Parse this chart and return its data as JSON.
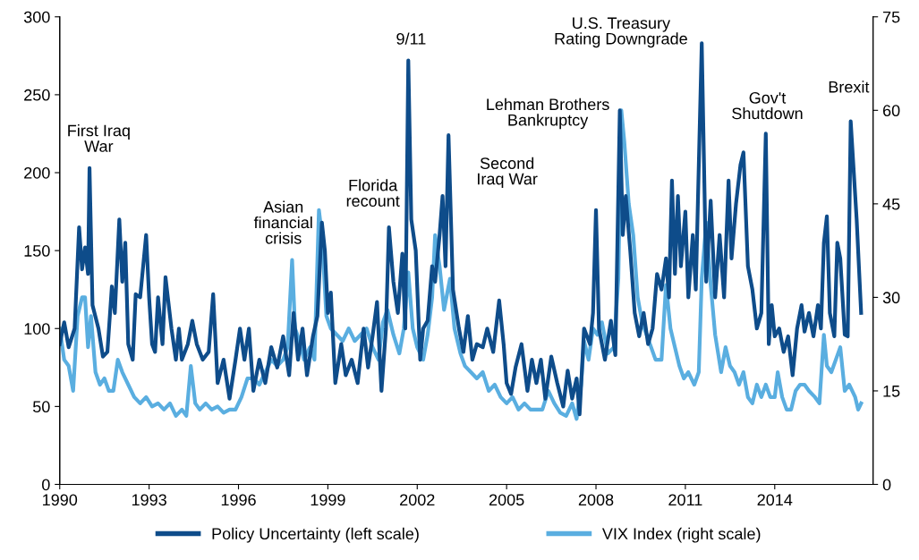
{
  "chart_data": {
    "type": "line",
    "xlim": [
      1990,
      2017.3
    ],
    "xticks": [
      1990,
      1993,
      1996,
      1999,
      2002,
      2005,
      2008,
      2011,
      2014
    ],
    "ylim": [
      0,
      300
    ],
    "yticks": [
      0,
      50,
      100,
      150,
      200,
      250,
      300
    ],
    "y2lim": [
      0,
      75
    ],
    "y2ticks": [
      0,
      15,
      30,
      45,
      60,
      75
    ],
    "grid": false,
    "legend": "bottom",
    "marker": "none",
    "line_style": "solid",
    "series": [
      {
        "name": "Policy Uncertainty (left scale)",
        "color": "#0e4c8a",
        "x": [
          1990.0,
          1990.15,
          1990.3,
          1990.5,
          1990.65,
          1990.75,
          1990.85,
          1990.95,
          1991.0,
          1991.1,
          1991.3,
          1991.45,
          1991.6,
          1991.75,
          1991.85,
          1992.0,
          1992.1,
          1992.2,
          1992.3,
          1992.45,
          1992.55,
          1992.7,
          1992.9,
          1993.0,
          1993.1,
          1993.2,
          1993.3,
          1993.45,
          1993.55,
          1993.75,
          1993.9,
          1994.0,
          1994.1,
          1994.3,
          1994.45,
          1994.6,
          1994.8,
          1995.0,
          1995.15,
          1995.3,
          1995.5,
          1995.7,
          1995.9,
          1996.05,
          1996.2,
          1996.35,
          1996.5,
          1996.7,
          1996.9,
          1997.1,
          1997.3,
          1997.5,
          1997.7,
          1997.85,
          1998.0,
          1998.15,
          1998.3,
          1998.5,
          1998.65,
          1998.8,
          1998.9,
          1999.0,
          1999.1,
          1999.25,
          1999.45,
          1999.6,
          1999.8,
          2000.0,
          2000.2,
          2000.35,
          2000.5,
          2000.65,
          2000.8,
          2000.95,
          2001.05,
          2001.2,
          2001.35,
          2001.5,
          2001.6,
          2001.7,
          2001.8,
          2001.95,
          2002.1,
          2002.2,
          2002.35,
          2002.5,
          2002.6,
          2002.75,
          2002.85,
          2002.95,
          2003.05,
          2003.2,
          2003.4,
          2003.55,
          2003.7,
          2003.85,
          2004.0,
          2004.2,
          2004.35,
          2004.55,
          2004.75,
          2004.9,
          2005.0,
          2005.15,
          2005.3,
          2005.5,
          2005.7,
          2005.85,
          2006.0,
          2006.15,
          2006.3,
          2006.5,
          2006.7,
          2006.9,
          2007.05,
          2007.2,
          2007.35,
          2007.45,
          2007.6,
          2007.8,
          2007.9,
          2008.0,
          2008.1,
          2008.3,
          2008.5,
          2008.65,
          2008.8,
          2008.9,
          2009.0,
          2009.15,
          2009.3,
          2009.45,
          2009.6,
          2009.75,
          2009.9,
          2010.05,
          2010.2,
          2010.35,
          2010.45,
          2010.55,
          2010.65,
          2010.75,
          2010.85,
          2011.0,
          2011.1,
          2011.25,
          2011.35,
          2011.55,
          2011.7,
          2011.85,
          2012.0,
          2012.15,
          2012.3,
          2012.45,
          2012.55,
          2012.7,
          2012.85,
          2012.95,
          2013.1,
          2013.25,
          2013.4,
          2013.55,
          2013.7,
          2013.8,
          2013.9,
          2014.0,
          2014.15,
          2014.3,
          2014.45,
          2014.6,
          2014.75,
          2014.9,
          2015.0,
          2015.15,
          2015.3,
          2015.45,
          2015.55,
          2015.65,
          2015.75,
          2015.85,
          2016.0,
          2016.1,
          2016.2,
          2016.35,
          2016.45,
          2016.55,
          2016.75,
          2016.9
        ],
        "values": [
          90,
          104,
          88,
          100,
          165,
          138,
          152,
          135,
          203,
          115,
          100,
          82,
          85,
          127,
          110,
          170,
          130,
          155,
          90,
          80,
          122,
          120,
          160,
          120,
          90,
          85,
          120,
          90,
          133,
          100,
          80,
          100,
          80,
          90,
          105,
          90,
          80,
          85,
          122,
          65,
          80,
          55,
          80,
          100,
          80,
          100,
          60,
          80,
          65,
          88,
          75,
          95,
          70,
          110,
          80,
          100,
          70,
          95,
          108,
          168,
          150,
          110,
          123,
          65,
          90,
          70,
          80,
          65,
          100,
          75,
          95,
          117,
          60,
          100,
          165,
          130,
          110,
          148,
          100,
          272,
          170,
          150,
          80,
          100,
          105,
          140,
          130,
          160,
          185,
          140,
          224,
          125,
          100,
          85,
          108,
          80,
          90,
          88,
          100,
          85,
          118,
          90,
          65,
          58,
          75,
          90,
          60,
          80,
          65,
          80,
          55,
          82,
          65,
          50,
          73,
          55,
          68,
          45,
          100,
          90,
          110,
          176,
          100,
          80,
          105,
          83,
          240,
          160,
          185,
          150,
          110,
          95,
          110,
          90,
          100,
          135,
          125,
          145,
          120,
          195,
          135,
          185,
          140,
          175,
          120,
          160,
          125,
          283,
          130,
          182,
          120,
          160,
          120,
          195,
          145,
          180,
          205,
          213,
          140,
          125,
          100,
          110,
          225,
          90,
          115,
          95,
          100,
          85,
          95,
          70,
          100,
          115,
          98,
          110,
          95,
          115,
          100,
          155,
          172,
          110,
          95,
          155,
          145,
          96,
          95,
          233,
          170,
          110
        ]
      },
      {
        "name": "VIX Index (right scale)",
        "color": "#5aaee0",
        "axis": "y2",
        "x": [
          1990.0,
          1990.15,
          1990.3,
          1990.45,
          1990.6,
          1990.75,
          1990.85,
          1990.95,
          1991.05,
          1991.2,
          1991.35,
          1991.5,
          1991.65,
          1991.8,
          1991.95,
          1992.1,
          1992.3,
          1992.5,
          1992.7,
          1992.9,
          1993.1,
          1993.3,
          1993.5,
          1993.7,
          1993.9,
          1994.1,
          1994.25,
          1994.4,
          1994.55,
          1994.7,
          1994.9,
          1995.1,
          1995.3,
          1995.5,
          1995.7,
          1995.9,
          1996.1,
          1996.3,
          1996.5,
          1996.7,
          1996.9,
          1997.1,
          1997.3,
          1997.5,
          1997.65,
          1997.8,
          1997.9,
          1998.05,
          1998.2,
          1998.4,
          1998.55,
          1998.7,
          1998.8,
          1998.95,
          1999.1,
          1999.3,
          1999.5,
          1999.7,
          1999.9,
          2000.1,
          2000.3,
          2000.5,
          2000.7,
          2000.85,
          2001.0,
          2001.2,
          2001.4,
          2001.55,
          2001.7,
          2001.85,
          2002.0,
          2002.2,
          2002.35,
          2002.5,
          2002.6,
          2002.75,
          2002.9,
          2003.1,
          2003.25,
          2003.45,
          2003.6,
          2003.8,
          2004.0,
          2004.2,
          2004.4,
          2004.6,
          2004.8,
          2005.0,
          2005.2,
          2005.4,
          2005.6,
          2005.8,
          2006.0,
          2006.2,
          2006.4,
          2006.6,
          2006.8,
          2007.0,
          2007.2,
          2007.35,
          2007.5,
          2007.6,
          2007.75,
          2007.9,
          2008.05,
          2008.2,
          2008.4,
          2008.6,
          2008.75,
          2008.85,
          2008.95,
          2009.1,
          2009.25,
          2009.4,
          2009.55,
          2009.7,
          2009.85,
          2010.0,
          2010.2,
          2010.35,
          2010.5,
          2010.65,
          2010.8,
          2010.95,
          2011.1,
          2011.3,
          2011.45,
          2011.55,
          2011.7,
          2011.85,
          2012.0,
          2012.2,
          2012.35,
          2012.5,
          2012.65,
          2012.8,
          2012.95,
          2013.1,
          2013.25,
          2013.4,
          2013.55,
          2013.7,
          2013.85,
          2014.0,
          2014.1,
          2014.25,
          2014.4,
          2014.55,
          2014.7,
          2014.85,
          2015.0,
          2015.15,
          2015.35,
          2015.5,
          2015.65,
          2015.75,
          2015.9,
          2016.05,
          2016.2,
          2016.35,
          2016.5,
          2016.6,
          2016.7,
          2016.8,
          2016.9
        ],
        "values": [
          25,
          20,
          19,
          15,
          27,
          30,
          30,
          22,
          27,
          18,
          16,
          17,
          15,
          15,
          20,
          18,
          16,
          14,
          13,
          14,
          12.5,
          13,
          12,
          13,
          11,
          12,
          11,
          19,
          13,
          12,
          13,
          12,
          12.5,
          11.5,
          12,
          12,
          14,
          17,
          17,
          16,
          18,
          20,
          19,
          20,
          22,
          36,
          25,
          23,
          20,
          22,
          20,
          44,
          40,
          27,
          25,
          24,
          23,
          25,
          23,
          24,
          25,
          22,
          20,
          26,
          28,
          24,
          21,
          25,
          34,
          25,
          22,
          20,
          24,
          30,
          40,
          35,
          28,
          33,
          25,
          21,
          19,
          18,
          17,
          18,
          15,
          16,
          14,
          13,
          14,
          12,
          13,
          12,
          12,
          12,
          15,
          13,
          11.5,
          11,
          13,
          10.5,
          16,
          23,
          20,
          25,
          24,
          26,
          21,
          22,
          33,
          60,
          55,
          45,
          40,
          30,
          26,
          24,
          22,
          20,
          20,
          32,
          25,
          22,
          19,
          17,
          18,
          16,
          18,
          33,
          42,
          32,
          24,
          18,
          22,
          19,
          18,
          16,
          18,
          14,
          13,
          16,
          14,
          16,
          14,
          14,
          18,
          14,
          12,
          12,
          15,
          16,
          16,
          15,
          14,
          13,
          24,
          19,
          18,
          20,
          22,
          15,
          16,
          15,
          14,
          12,
          13
        ]
      }
    ],
    "annotations": [
      "First Iraq\nWar",
      "Asian\nfinancial\ncrisis",
      "Florida\nrecount",
      "9/11",
      "Second\nIraq War",
      "Lehman Brothers\nBankruptcy",
      "U.S. Treasury\nRating Downgrade",
      "Gov't\nShutdown",
      "Brexit"
    ]
  }
}
